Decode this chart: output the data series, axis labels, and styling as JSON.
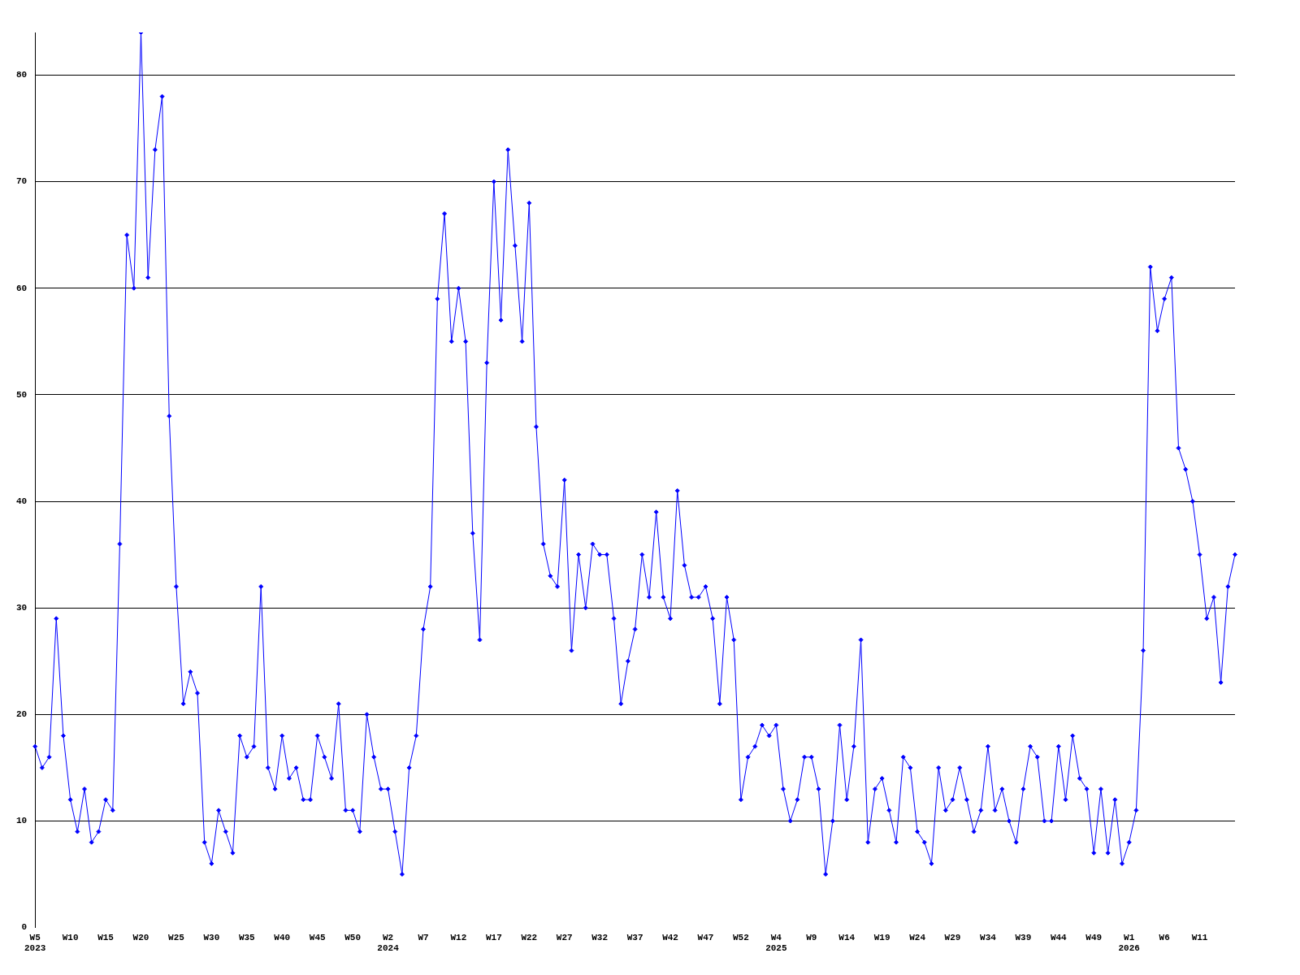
{
  "chart_data": {
    "type": "line",
    "categories": [
      "W5\n2023",
      null,
      null,
      null,
      null,
      "W10",
      null,
      null,
      null,
      null,
      "W15",
      null,
      null,
      null,
      null,
      "W20",
      null,
      null,
      null,
      null,
      "W25",
      null,
      null,
      null,
      null,
      "W30",
      null,
      null,
      null,
      null,
      "W35",
      null,
      null,
      null,
      null,
      "W40",
      null,
      null,
      null,
      null,
      "W45",
      null,
      null,
      null,
      null,
      "W50",
      null,
      null,
      null,
      null,
      "W2\n2024",
      null,
      null,
      null,
      null,
      "W7",
      null,
      null,
      null,
      null,
      "W12",
      null,
      null,
      null,
      null,
      "W17",
      null,
      null,
      null,
      null,
      "W22",
      null,
      null,
      null,
      null,
      "W27",
      null,
      null,
      null,
      null,
      "W32",
      null,
      null,
      null,
      null,
      "W37",
      null,
      null,
      null,
      null,
      "W42",
      null,
      null,
      null,
      null,
      "W47",
      null,
      null,
      null,
      null,
      "W52",
      null,
      null,
      null,
      null,
      "W4\n2025",
      null,
      null,
      null,
      null,
      "W9",
      null,
      null,
      null,
      null,
      "W14",
      null,
      null,
      null,
      null,
      "W19",
      null,
      null,
      null,
      null,
      "W24",
      null,
      null,
      null,
      null,
      "W29",
      null,
      null,
      null,
      null,
      "W34",
      null,
      null,
      null,
      null,
      "W39",
      null,
      null,
      null,
      null,
      "W44",
      null,
      null,
      null,
      null,
      "W49",
      null,
      null,
      null,
      null,
      "W1\n2026",
      null,
      null,
      null,
      null,
      "W6",
      null,
      null,
      null,
      null,
      "W11",
      null,
      null,
      null,
      null,
      null
    ],
    "series": [
      {
        "color": "#0000ff",
        "values": [
          17,
          15,
          16,
          29,
          18,
          12,
          9,
          13,
          8,
          9,
          12,
          11,
          36,
          65,
          60,
          84,
          61,
          73,
          78,
          48,
          32,
          21,
          24,
          22,
          8,
          6,
          11,
          9,
          7,
          18,
          16,
          17,
          32,
          15,
          13,
          18,
          14,
          15,
          12,
          12,
          18,
          16,
          14,
          21,
          11,
          11,
          9,
          20,
          16,
          13,
          13,
          9,
          5,
          15,
          18,
          28,
          32,
          59,
          67,
          55,
          60,
          55,
          37,
          27,
          53,
          70,
          57,
          73,
          64,
          55,
          68,
          47,
          36,
          33,
          32,
          42,
          26,
          35,
          30,
          36,
          35,
          35,
          29,
          21,
          25,
          28,
          35,
          31,
          39,
          31,
          29,
          41,
          34,
          31,
          31,
          32,
          29,
          21,
          31,
          27,
          12,
          16,
          17,
          19,
          18,
          19,
          13,
          10,
          12,
          16,
          16,
          13,
          5,
          10,
          19,
          12,
          17,
          27,
          8,
          13,
          14,
          11,
          8,
          16,
          15,
          9,
          8,
          6,
          15,
          11,
          12,
          15,
          12,
          9,
          11,
          17,
          11,
          13,
          10,
          8,
          13,
          17,
          16,
          10,
          10,
          17,
          12,
          18,
          14,
          13,
          7,
          13,
          7,
          12,
          6,
          8,
          11,
          26,
          62,
          56,
          59,
          61,
          45,
          43,
          40,
          35,
          29,
          31,
          23,
          32,
          35
        ]
      }
    ],
    "ylim": [
      0,
      84
    ],
    "yticks": [
      0,
      10,
      20,
      30,
      40,
      50,
      60,
      70,
      80
    ],
    "grid": "y",
    "legend": false,
    "marker": "diamond",
    "line_style": "solid"
  }
}
